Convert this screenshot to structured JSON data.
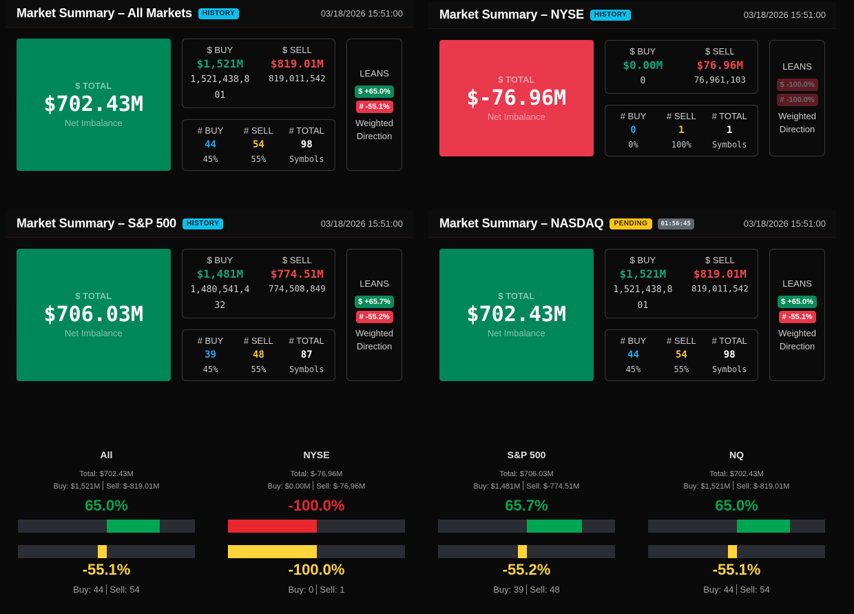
{
  "colors": {
    "positive_card": "#00875a",
    "negative_card": "#ea384c",
    "buy_dollar": "#10a37f",
    "sell_dollar": "#f1474b",
    "buy_count": "#1ea7f2",
    "sell_count": "#fcc419",
    "history_badge": "#0dbfea",
    "pending_badge": "#fcc419",
    "gauge_positive": "#00a651",
    "gauge_negative": "#e8272f",
    "gauge_count": "#ffd43b"
  },
  "panels": [
    {
      "title": "Market Summary – All Markets",
      "status_badge": {
        "label": "HISTORY",
        "type": "history"
      },
      "timestamp": "03/18/2026 15:51:00",
      "total": {
        "label": "$ TOTAL",
        "value": "$702.43M",
        "sub": "Net Imbalance",
        "tone": "positive"
      },
      "dollar": {
        "buy_label": "$ BUY",
        "sell_label": "$ SELL",
        "buy_value": "$1,521M",
        "sell_value": "$819.01M",
        "buy_raw": "1,521,438,801",
        "sell_raw": "819,011,542"
      },
      "count": {
        "buy_label": "# BUY",
        "sell_label": "# SELL",
        "total_label": "# TOTAL",
        "buy": "44",
        "sell": "54",
        "total": "98",
        "buy_pct": "45%",
        "sell_pct": "55%",
        "total_sub": "Symbols"
      },
      "leans": {
        "label": "LEANS",
        "dollar_badge": "$ +65.0%",
        "dollar_tone": "positive",
        "count_badge": "# -55.1%",
        "count_tone": "negative",
        "dimmed": false,
        "sub": "Weighted Direction"
      }
    },
    {
      "title": "Market Summary – NYSE",
      "status_badge": {
        "label": "HISTORY",
        "type": "history"
      },
      "timestamp": "03/18/2026 15:51:00",
      "total": {
        "label": "$ TOTAL",
        "value": "$-76.96M",
        "sub": "Net Imbalance",
        "tone": "negative"
      },
      "dollar": {
        "buy_label": "$ BUY",
        "sell_label": "$ SELL",
        "buy_value": "$0.00M",
        "sell_value": "$76.96M",
        "buy_raw": "0",
        "sell_raw": "76,961,103"
      },
      "count": {
        "buy_label": "# BUY",
        "sell_label": "# SELL",
        "total_label": "# TOTAL",
        "buy": "0",
        "sell": "1",
        "total": "1",
        "buy_pct": "0%",
        "sell_pct": "100%",
        "total_sub": "Symbols"
      },
      "leans": {
        "label": "LEANS",
        "dollar_badge": "$ -100.0%",
        "dollar_tone": "negative",
        "count_badge": "# -100.0%",
        "count_tone": "negative",
        "dimmed": true,
        "sub": "Weighted Direction"
      }
    },
    {
      "title": "Market Summary – S&P 500",
      "status_badge": {
        "label": "HISTORY",
        "type": "history"
      },
      "timestamp": "03/18/2026 15:51:00",
      "total": {
        "label": "$ TOTAL",
        "value": "$706.03M",
        "sub": "Net Imbalance",
        "tone": "positive"
      },
      "dollar": {
        "buy_label": "$ BUY",
        "sell_label": "$ SELL",
        "buy_value": "$1,481M",
        "sell_value": "$774.51M",
        "buy_raw": "1,480,541,432",
        "sell_raw": "774,508,849"
      },
      "count": {
        "buy_label": "# BUY",
        "sell_label": "# SELL",
        "total_label": "# TOTAL",
        "buy": "39",
        "sell": "48",
        "total": "87",
        "buy_pct": "45%",
        "sell_pct": "55%",
        "total_sub": "Symbols"
      },
      "leans": {
        "label": "LEANS",
        "dollar_badge": "$ +65.7%",
        "dollar_tone": "positive",
        "count_badge": "# -55.2%",
        "count_tone": "negative",
        "dimmed": false,
        "sub": "Weighted Direction"
      }
    },
    {
      "title": "Market Summary – NASDAQ",
      "status_badge": {
        "label": "PENDING",
        "type": "pending"
      },
      "timer": "01:56:45",
      "timestamp": "03/18/2026 15:51:00",
      "total": {
        "label": "$ TOTAL",
        "value": "$702.43M",
        "sub": "Net Imbalance",
        "tone": "positive"
      },
      "dollar": {
        "buy_label": "$ BUY",
        "sell_label": "$ SELL",
        "buy_value": "$1,521M",
        "sell_value": "$819.01M",
        "buy_raw": "1,521,438,801",
        "sell_raw": "819,011,542"
      },
      "count": {
        "buy_label": "# BUY",
        "sell_label": "# SELL",
        "total_label": "# TOTAL",
        "buy": "44",
        "sell": "54",
        "total": "98",
        "buy_pct": "45%",
        "sell_pct": "55%",
        "total_sub": "Symbols"
      },
      "leans": {
        "label": "LEANS",
        "dollar_badge": "$ +65.0%",
        "dollar_tone": "positive",
        "count_badge": "# -55.1%",
        "count_tone": "negative",
        "dimmed": false,
        "sub": "Weighted Direction"
      }
    }
  ],
  "gauges": [
    {
      "title": "All",
      "total": "Total: $702.43M",
      "buy": "Buy: $1,521M",
      "sell": "Sell: $-819.01M",
      "dollar_pct": "65.0%",
      "dollar_tone": "positive",
      "dollar_bar_value": 0.6,
      "count_pct": "-55.1%",
      "count_bar_value": -0.1,
      "count_buy": "Buy: 44",
      "count_sell": "Sell: 54"
    },
    {
      "title": "NYSE",
      "total": "Total: $-76.96M",
      "buy": "Buy: $0.00M",
      "sell": "Sell: $-76.96M",
      "dollar_pct": "-100.0%",
      "dollar_tone": "negative",
      "dollar_bar_value": -1.0,
      "count_pct": "-100.0%",
      "count_bar_value": -1.0,
      "count_buy": "Buy: 0",
      "count_sell": "Sell: 1"
    },
    {
      "title": "S&P 500",
      "total": "Total: $706.03M",
      "buy": "Buy: $1,481M",
      "sell": "Sell: $-774.51M",
      "dollar_pct": "65.7%",
      "dollar_tone": "positive",
      "dollar_bar_value": 0.625,
      "count_pct": "-55.2%",
      "count_bar_value": -0.1,
      "count_buy": "Buy: 39",
      "count_sell": "Sell: 48"
    },
    {
      "title": "NQ",
      "total": "Total: $702.43M",
      "buy": "Buy: $1,521M",
      "sell": "Sell: $-819.01M",
      "dollar_pct": "65.0%",
      "dollar_tone": "positive",
      "dollar_bar_value": 0.6,
      "count_pct": "-55.1%",
      "count_bar_value": -0.1,
      "count_buy": "Buy: 44",
      "count_sell": "Sell: 54"
    }
  ]
}
